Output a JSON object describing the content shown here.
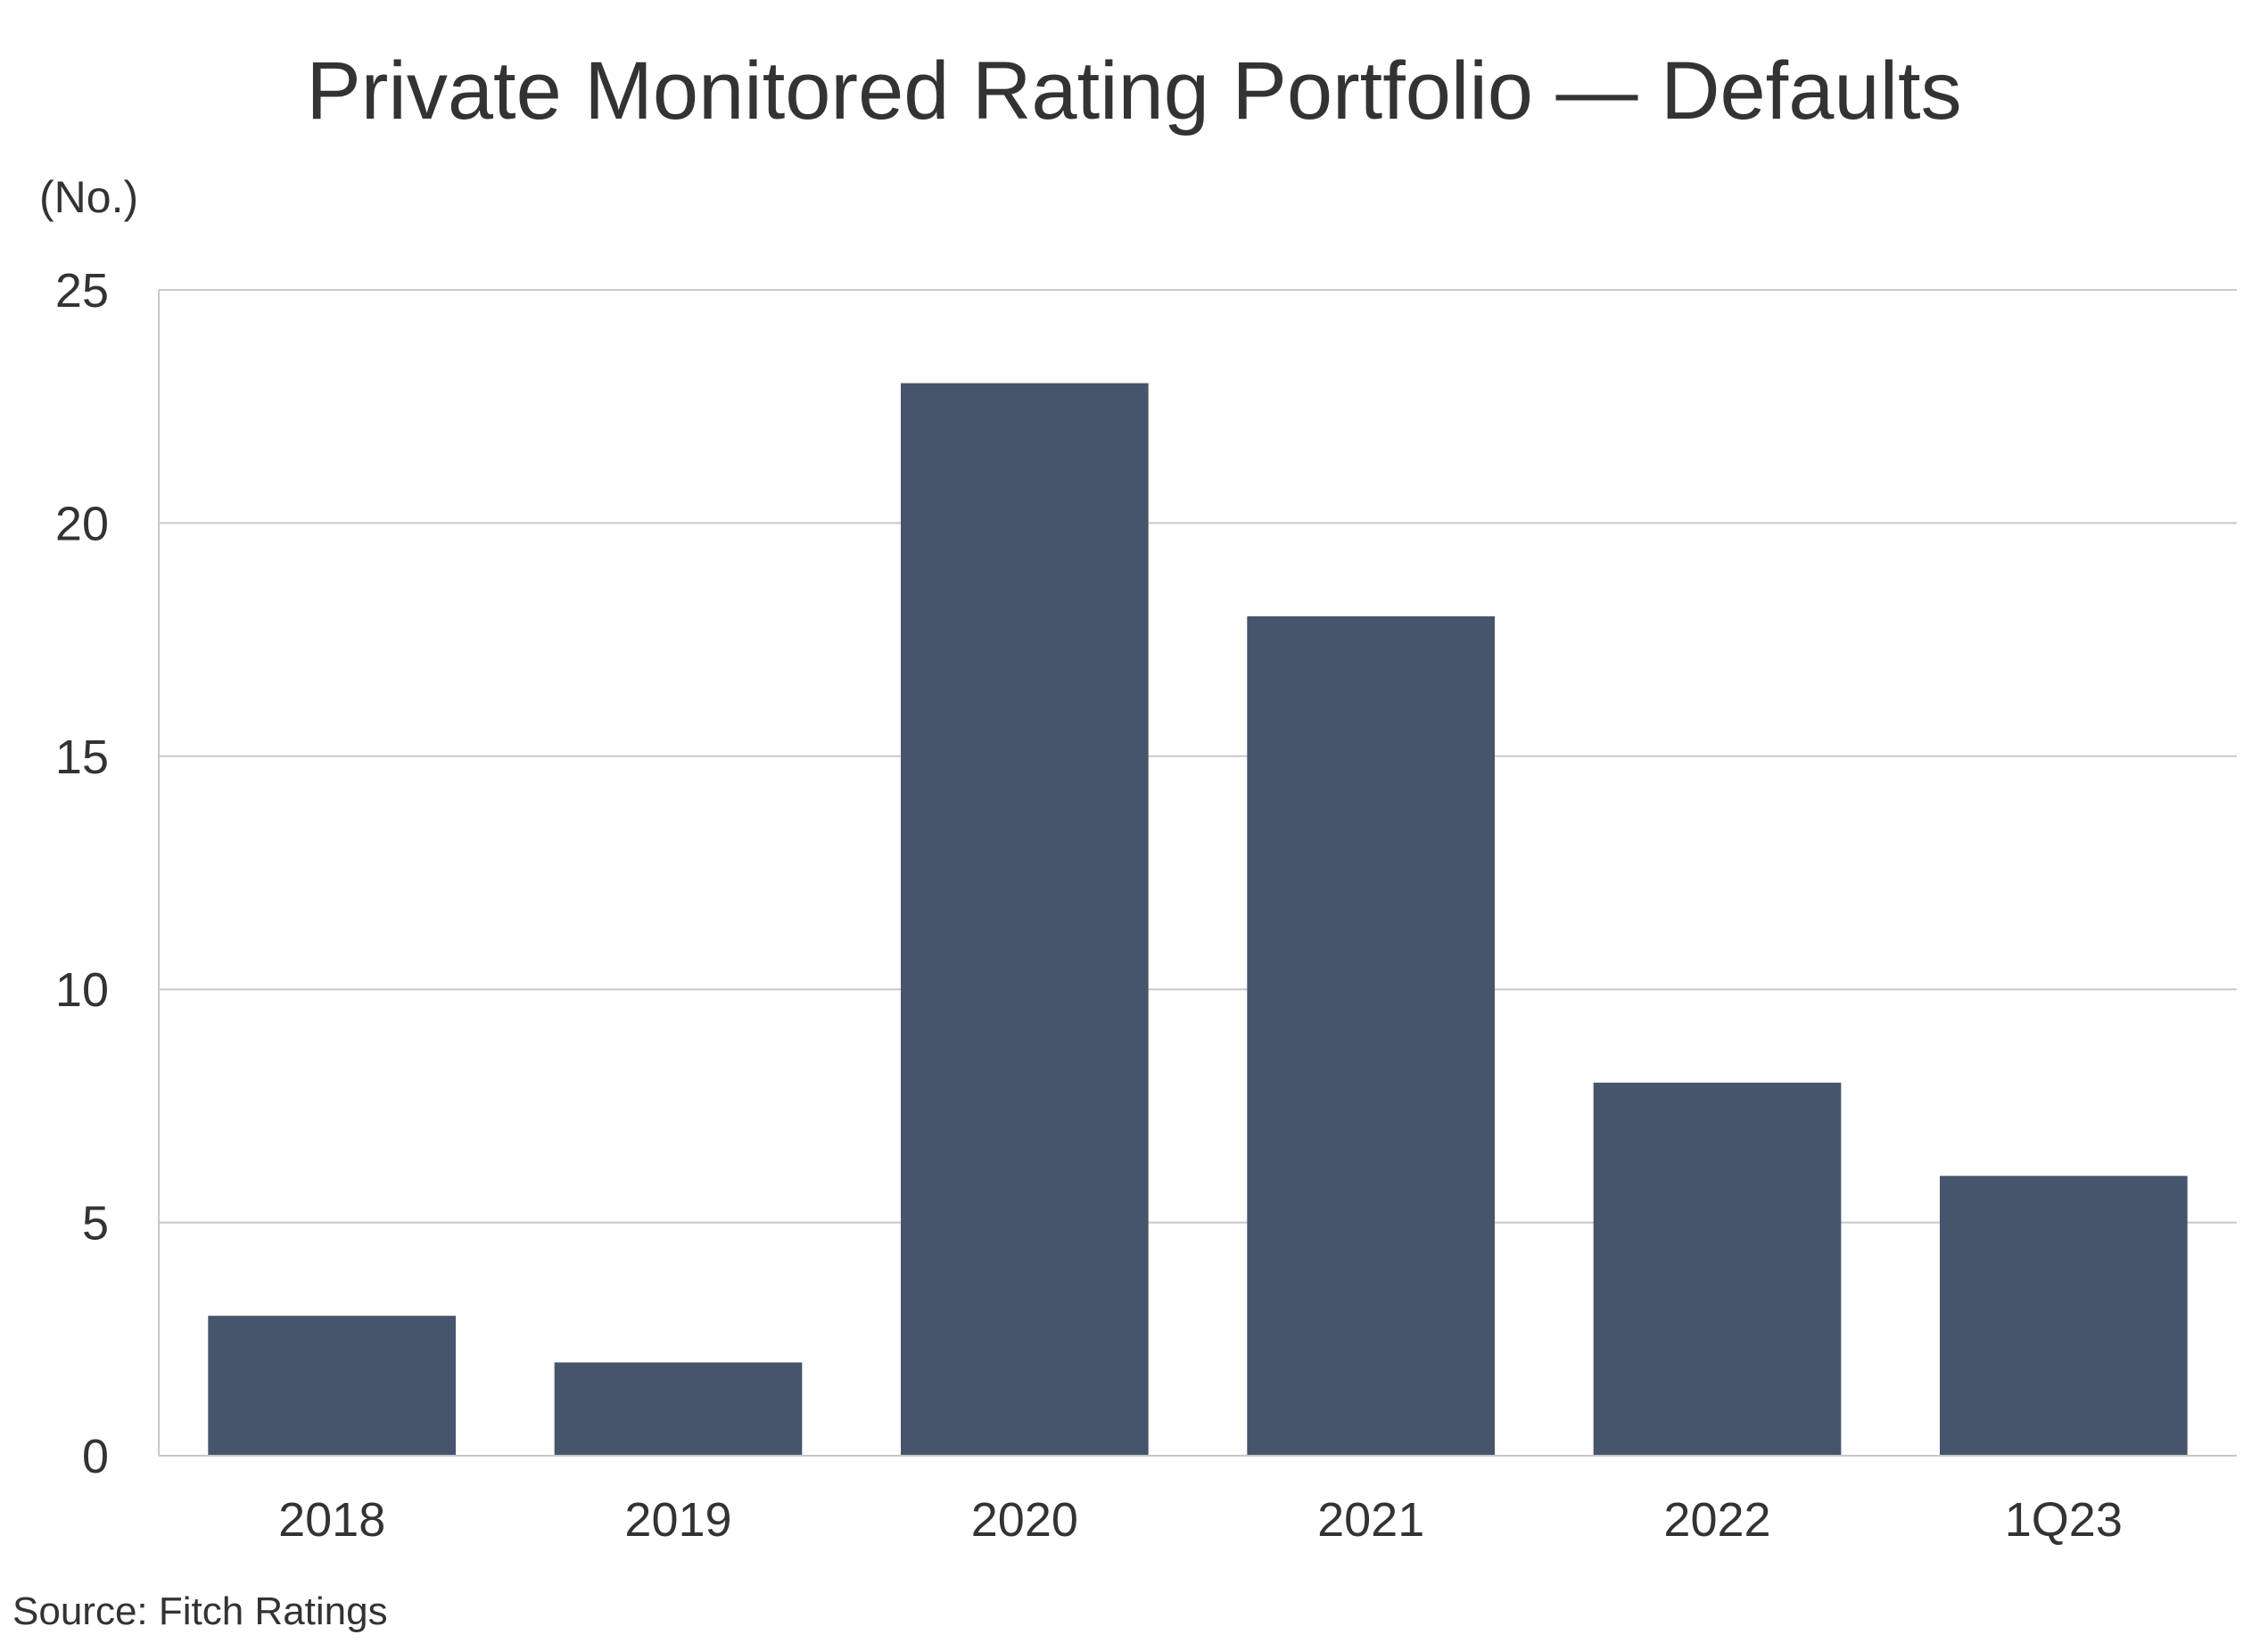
{
  "chart_data": {
    "type": "bar",
    "title": "Private Monitored Rating Portfolio — Defaults",
    "ylabel": "(No.)",
    "xlabel": "",
    "categories": [
      "2018",
      "2019",
      "2020",
      "2021",
      "2022",
      "1Q23"
    ],
    "values": [
      3,
      2,
      23,
      18,
      8,
      6
    ],
    "ylim": [
      0,
      25
    ],
    "yticks": [
      0,
      5,
      10,
      15,
      20,
      25
    ],
    "grid": true,
    "bar_color": "#46556B",
    "grid_color": "#C8C8C8",
    "source": "Source: Fitch Ratings"
  }
}
